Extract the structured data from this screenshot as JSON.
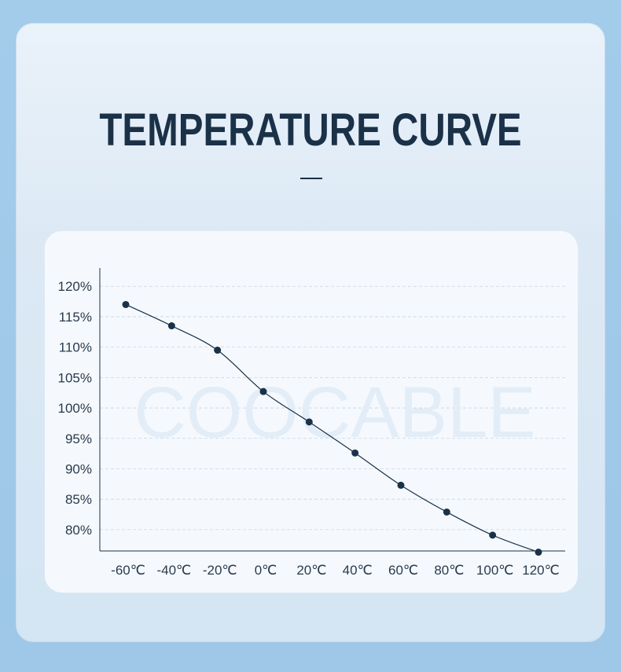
{
  "title": "TEMPERATURE CURVE",
  "watermark": "COOCABLE",
  "colors": {
    "line": "#1a3148",
    "grid": "#c9d4de",
    "text": "#2a3a4c"
  },
  "chart_data": {
    "type": "line",
    "title": "",
    "xlabel": "",
    "ylabel": "",
    "categories": [
      "-60℃",
      "-40℃",
      "-20℃",
      "0℃",
      "20℃",
      "40℃",
      "60℃",
      "80℃",
      "100℃",
      "120℃"
    ],
    "series": [
      {
        "values": [
          117,
          113.5,
          109.5,
          102.7,
          97.7,
          92.6,
          87.3,
          82.9,
          79.1,
          76.3
        ]
      }
    ],
    "yticks": [
      "80%",
      "85%",
      "90%",
      "95%",
      "100%",
      "105%",
      "110%",
      "115%",
      "120%"
    ],
    "ylim": [
      76.5,
      123
    ],
    "grid": true
  }
}
